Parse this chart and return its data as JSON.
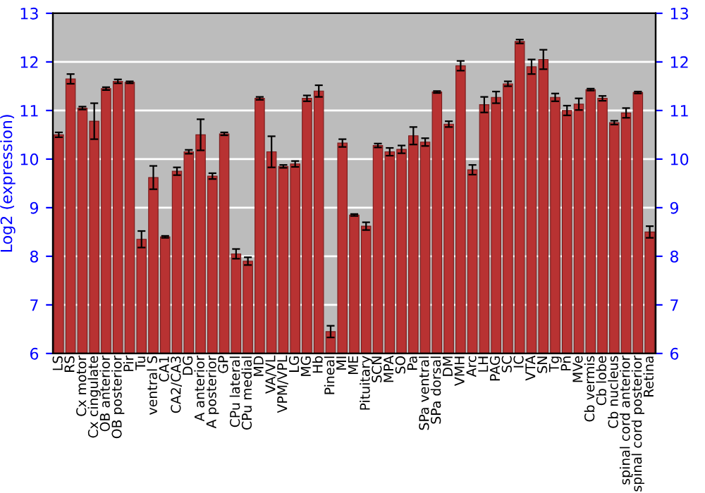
{
  "chart_data": {
    "type": "bar",
    "ylabel": "Log2 (expression)",
    "categories": [
      "LS",
      "RS",
      "Cx motor",
      "Cx cingulate",
      "OB anterior",
      "OB posterior",
      "Pir",
      "Tu",
      "ventral S",
      "CA1",
      "CA2/CA3",
      "DG",
      "A anterior",
      "A posterior",
      "GP",
      "CPu lateral",
      "CPu medial",
      "MD",
      "VA/VL",
      "VPM/VPL",
      "LG",
      "MG",
      "Hb",
      "Pineal",
      "MI",
      "ME",
      "Pituitary",
      "SCN",
      "MPA",
      "SO",
      "Pa",
      "SPa ventral",
      "SPa dorsal",
      "DM",
      "VMH",
      "Arc",
      "LH",
      "PAG",
      "SC",
      "IC",
      "VTA",
      "SN",
      "Tg",
      "Pn",
      "MVe",
      "Cb vermis",
      "Cb lobe",
      "Cb nucleus",
      "spinal cord anterior",
      "spinal cord posterior",
      "Retina"
    ],
    "values": [
      10.5,
      11.65,
      11.05,
      10.78,
      11.45,
      11.6,
      11.58,
      8.35,
      9.62,
      8.4,
      9.75,
      10.15,
      10.5,
      9.65,
      10.52,
      8.05,
      7.9,
      11.25,
      10.15,
      9.85,
      9.9,
      11.25,
      11.4,
      6.45,
      10.33,
      8.85,
      8.62,
      10.28,
      10.15,
      10.2,
      10.48,
      10.35,
      11.38,
      10.72,
      11.92,
      9.78,
      11.12,
      11.27,
      11.55,
      12.42,
      11.9,
      12.05,
      11.27,
      11.0,
      11.13,
      11.43,
      11.25,
      10.75,
      10.95,
      11.37,
      8.5
    ],
    "errors": [
      0.05,
      0.1,
      0.03,
      0.37,
      0.03,
      0.04,
      0.02,
      0.17,
      0.24,
      0.02,
      0.08,
      0.04,
      0.32,
      0.06,
      0.03,
      0.1,
      0.08,
      0.03,
      0.32,
      0.03,
      0.06,
      0.06,
      0.12,
      0.12,
      0.08,
      0.02,
      0.08,
      0.04,
      0.08,
      0.08,
      0.18,
      0.08,
      0.02,
      0.06,
      0.1,
      0.1,
      0.16,
      0.12,
      0.05,
      0.04,
      0.15,
      0.2,
      0.08,
      0.1,
      0.12,
      0.02,
      0.05,
      0.04,
      0.1,
      0.02,
      0.12
    ],
    "color": "#b83232",
    "ylim": [
      6,
      13
    ],
    "yticks": [
      6,
      7,
      8,
      9,
      10,
      11,
      12,
      13
    ],
    "y2lim": [
      6,
      13
    ],
    "y2ticks": [
      6,
      7,
      8,
      9,
      10,
      11,
      12,
      13
    ],
    "grid": "y"
  }
}
